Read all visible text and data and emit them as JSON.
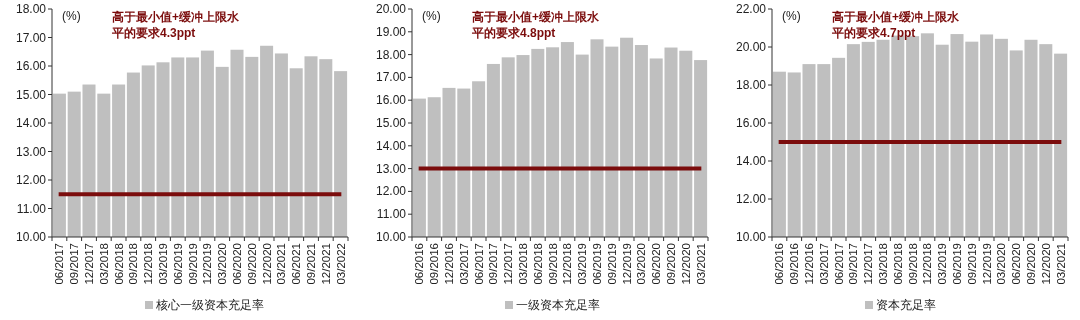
{
  "chart_data": [
    {
      "type": "bar",
      "ylabel": "(%)",
      "legend": "bottom",
      "grid": false,
      "categories": [
        "06/2017",
        "09/2017",
        "12/2017",
        "03/2018",
        "06/2018",
        "09/2018",
        "12/2018",
        "03/2019",
        "06/2019",
        "09/2019",
        "12/2019",
        "03/2020",
        "06/2020",
        "09/2020",
        "12/2020",
        "03/2021",
        "06/2021",
        "09/2021",
        "12/2021",
        "03/2022"
      ],
      "series": [
        {
          "name": "核心一级资本充足率",
          "color": "#bfbfbf",
          "values": [
            15.03,
            15.1,
            15.35,
            15.03,
            15.35,
            15.77,
            16.02,
            16.13,
            16.3,
            16.3,
            16.54,
            15.97,
            16.57,
            16.32,
            16.71,
            16.44,
            15.92,
            16.34,
            16.24,
            15.82
          ]
        }
      ],
      "ylim": [
        10,
        18
      ],
      "yticks": [
        {
          "value": 10,
          "label": "10.00"
        },
        {
          "value": 11,
          "label": "11.00"
        },
        {
          "value": 12,
          "label": "12.00"
        },
        {
          "value": 13,
          "label": "13.00"
        },
        {
          "value": 14,
          "label": "14.00"
        },
        {
          "value": 15,
          "label": "15.00"
        },
        {
          "value": 16,
          "label": "16.00"
        },
        {
          "value": 17,
          "label": "17.00"
        },
        {
          "value": 18,
          "label": "18.00"
        }
      ],
      "ref_lines": [
        {
          "axis": "y",
          "value": 11.5,
          "color": "#7b0c0c"
        }
      ],
      "annotations": [
        "高于最小值+缓冲上限水平的要求4.3ppt"
      ]
    },
    {
      "type": "bar",
      "ylabel": "(%)",
      "legend": "bottom",
      "grid": false,
      "categories": [
        "06/2016",
        "09/2016",
        "12/2016",
        "03/2017",
        "06/2017",
        "09/2017",
        "12/2017",
        "03/2018",
        "06/2018",
        "09/2018",
        "12/2018",
        "03/2019",
        "06/2019",
        "09/2019",
        "12/2019",
        "03/2020",
        "06/2020",
        "09/2020",
        "12/2020",
        "03/2021"
      ],
      "series": [
        {
          "name": "一级资本充足率",
          "color": "#bfbfbf",
          "values": [
            16.07,
            16.13,
            16.54,
            16.51,
            16.83,
            17.59,
            17.88,
            17.98,
            18.25,
            18.32,
            18.55,
            18.0,
            18.67,
            18.35,
            18.74,
            18.42,
            17.83,
            18.31,
            18.17,
            17.76
          ]
        }
      ],
      "ylim": [
        10,
        20
      ],
      "yticks": [
        {
          "value": 10,
          "label": "10.00"
        },
        {
          "value": 11,
          "label": "11.00"
        },
        {
          "value": 12,
          "label": "12.00"
        },
        {
          "value": 13,
          "label": "13.00"
        },
        {
          "value": 14,
          "label": "14.00"
        },
        {
          "value": 15,
          "label": "15.00"
        },
        {
          "value": 16,
          "label": "16.00"
        },
        {
          "value": 17,
          "label": "17.00"
        },
        {
          "value": 18,
          "label": "18.00"
        },
        {
          "value": 19,
          "label": "19.00"
        },
        {
          "value": 20,
          "label": "20.00"
        }
      ],
      "ref_lines": [
        {
          "axis": "y",
          "value": 13,
          "color": "#7b0c0c"
        }
      ],
      "annotations": [
        "高于最小值+缓冲上限水平的要求4.8ppt"
      ]
    },
    {
      "type": "bar",
      "ylabel": "(%)",
      "legend": "bottom",
      "grid": false,
      "categories": [
        "06/2016",
        "09/2016",
        "12/2016",
        "03/2017",
        "06/2017",
        "09/2017",
        "12/2017",
        "03/2018",
        "06/2018",
        "09/2018",
        "12/2018",
        "03/2019",
        "06/2019",
        "09/2019",
        "12/2019",
        "03/2020",
        "06/2020",
        "09/2020",
        "12/2020",
        "03/2021"
      ],
      "series": [
        {
          "name": "资本充足率",
          "color": "#bfbfbf",
          "values": [
            18.7,
            18.66,
            19.1,
            19.1,
            19.43,
            20.15,
            20.27,
            20.38,
            20.6,
            20.57,
            20.72,
            20.12,
            20.68,
            20.28,
            20.66,
            20.43,
            19.82,
            20.38,
            20.15,
            19.65
          ]
        }
      ],
      "ylim": [
        10,
        22
      ],
      "yticks": [
        {
          "value": 10,
          "label": "10.00"
        },
        {
          "value": 12,
          "label": "12.00"
        },
        {
          "value": 14,
          "label": "14.00"
        },
        {
          "value": 16,
          "label": "16.00"
        },
        {
          "value": 18,
          "label": "18.00"
        },
        {
          "value": 20,
          "label": "20.00"
        },
        {
          "value": 22,
          "label": "22.00"
        }
      ],
      "ref_lines": [
        {
          "axis": "y",
          "value": 15,
          "color": "#7b0c0c"
        }
      ],
      "annotations": [
        "高于最小值+缓冲上限水平的要求4.7ppt"
      ]
    }
  ]
}
